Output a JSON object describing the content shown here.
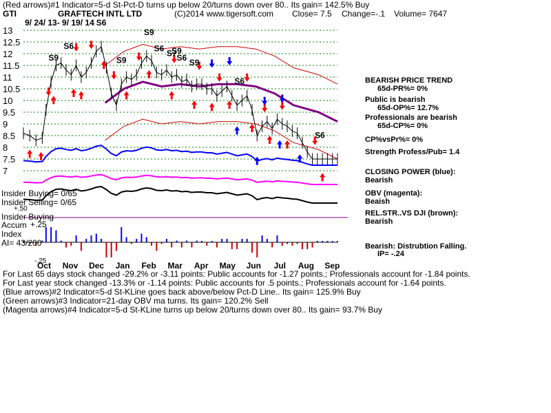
{
  "header": {
    "line1": "(Red arrows)#1 Indicator=5-d St-Pct-D turns up below 20/turns down over 80.. Its gain= 142.5% Buy",
    "ticker": "GTI",
    "company": "GRAFTECH INTL LTD",
    "copyright": "(C)2014 www.tigersoft.com",
    "close": "Close=  7.5",
    "change": "Change=-.1",
    "volume": "Volume= 7647",
    "date_range": "9/ 24/ 13-  9/ 19/ 14"
  },
  "chart_data": {
    "type": "line",
    "title": "",
    "xlabel": "",
    "ylabel": "",
    "price_yticks": [
      13,
      12.5,
      12,
      11.5,
      11,
      10.5,
      10,
      9.5,
      9,
      8.5,
      8,
      7.5,
      7
    ],
    "ylim": [
      6.8,
      13.2
    ],
    "month_labels": [
      "Oct",
      "Nov",
      "Dec",
      "Jan",
      "Feb",
      "Mar",
      "Apr",
      "May",
      "Jun",
      "Jul",
      "Aug",
      "Sep"
    ],
    "accum_ticks": [
      "+.25",
      "+.50",
      "-.25"
    ],
    "accum_labels": [
      "Accum",
      "Index"
    ],
    "series": [
      {
        "name": "Close",
        "x": [
          0,
          5,
          10,
          15,
          18,
          22,
          26,
          30,
          34,
          38,
          42,
          46,
          50,
          54,
          58,
          62,
          66,
          70,
          74,
          78,
          82,
          86,
          90,
          94,
          98,
          102,
          106,
          110,
          114,
          118,
          122,
          126,
          130,
          134,
          138,
          142,
          146,
          150,
          154,
          158,
          162,
          166,
          170,
          174,
          178,
          182,
          186,
          190,
          194,
          198,
          202,
          206,
          210,
          214,
          218,
          222,
          226,
          230,
          234,
          238,
          242,
          246,
          250
        ],
        "values": [
          8.6,
          8.5,
          8.3,
          8.4,
          9.6,
          10.8,
          11.5,
          11.6,
          11.3,
          11.1,
          11.5,
          11.0,
          11.2,
          11.6,
          12.1,
          12.3,
          11.4,
          10.3,
          9.8,
          10.7,
          11.0,
          10.9,
          11.1,
          11.6,
          11.9,
          11.7,
          11.2,
          11.1,
          11.3,
          11.0,
          11.1,
          10.8,
          10.9,
          10.6,
          10.7,
          10.7,
          10.5,
          10.5,
          10.2,
          10.4,
          10.6,
          10.2,
          9.8,
          10.0,
          10.2,
          9.6,
          8.5,
          8.9,
          9.1,
          8.8,
          9.2,
          9.0,
          8.9,
          8.7,
          8.6,
          8.2,
          7.8,
          7.5,
          7.5,
          7.5,
          7.5,
          7.5,
          7.5
        ]
      },
      {
        "name": "65-day MA",
        "x": [
          65,
          80,
          95,
          110,
          125,
          140,
          155,
          170,
          185,
          200,
          215,
          235,
          250
        ],
        "values": [
          9.9,
          10.5,
          10.8,
          10.6,
          10.7,
          10.6,
          10.7,
          10.7,
          10.6,
          10.3,
          9.8,
          9.5,
          9.1
        ]
      }
    ],
    "signals": {
      "red_up": [
        5,
        14,
        24,
        40,
        46,
        64,
        82,
        100,
        118,
        136,
        150,
        164,
        182,
        196,
        210,
        238
      ],
      "red_down": [
        20,
        42,
        54,
        72,
        92,
        120,
        140,
        156,
        178,
        192,
        206,
        232
      ],
      "blue_up": [
        170,
        186,
        204,
        220
      ],
      "blue_down": [
        150,
        164,
        192,
        206
      ],
      "signal_labels": [
        {
          "label": "S9",
          "x": 24
        },
        {
          "label": "S6",
          "x": 36
        },
        {
          "label": "S6",
          "x": 62
        },
        {
          "label": "S9",
          "x": 78
        },
        {
          "label": "S9",
          "x": 100
        },
        {
          "label": "S6",
          "x": 108
        },
        {
          "label": "S7",
          "x": 118
        },
        {
          "label": "S9",
          "x": 122
        },
        {
          "label": "S6",
          "x": 126
        },
        {
          "label": "S9",
          "x": 136
        },
        {
          "label": "S6",
          "x": 172
        },
        {
          "label": "S6",
          "x": 236
        }
      ]
    }
  },
  "insider": {
    "buying": "Insider Buying= 0/65",
    "selling": "Insider Selling= 0/65",
    "buying2": "Insider Buying"
  },
  "ai_text": "AI= 43/200",
  "right_panel": {
    "trend": "BEARISH PRICE TREND",
    "pr": "65d-PR%= 0%",
    "public": "Public is bearish",
    "op": "65d-OP%= 12.7%",
    "prof": "Professionals are bearish",
    "cp": "65d-CP%= 0%",
    "cpvspr": "CP%vsPr%=  0%",
    "strength": "Strength Profess/Pub= 1.4",
    "closing_power": "CLOSING POWER (blue):",
    "closing_val": "Bearish",
    "obv": "OBV (magenta):",
    "obv_val": "Beaish",
    "relstr": "REL.STR..VS DJI (brown):",
    "relstr_val": "Bearish",
    "distrib": "Bearish: Distrubtion Falling.",
    "ip": "IP= -.24"
  },
  "footer": {
    "line1": "For Last 65 days stock changed -29.2% or -3.11 points:  Public accounts for -1.27 points.;  Professionals account for -1.84 points.",
    "line2": "For Last year stock changed -13.3% or -1.14 points:  Public accounts for  .5 points.;  Professionals account for -1.64 points.",
    "line3": "(Blue arrows)#2 Indicator=5-d St-KLine goes back above/below Pct-D Line.. Its gain= 125.9% Buy",
    "line4": "(Green arrows)#3 Indicator=21-day OBV ma turns. Its gain= 120.2% Sell",
    "line5": "(Magenta arrows)#4 Indicator=5-d St-KLine turns up below 20/turns down over 80.. Its gain= 93.7% Buy"
  },
  "colors": {
    "price": "#000000",
    "ma": "#800080",
    "bands": "#cc0000",
    "closing_power": "#0000ff",
    "obv": "#ff00ff",
    "grid": "#008000",
    "red_arrow": "#ff0000",
    "blue_arrow": "#0000ff"
  }
}
